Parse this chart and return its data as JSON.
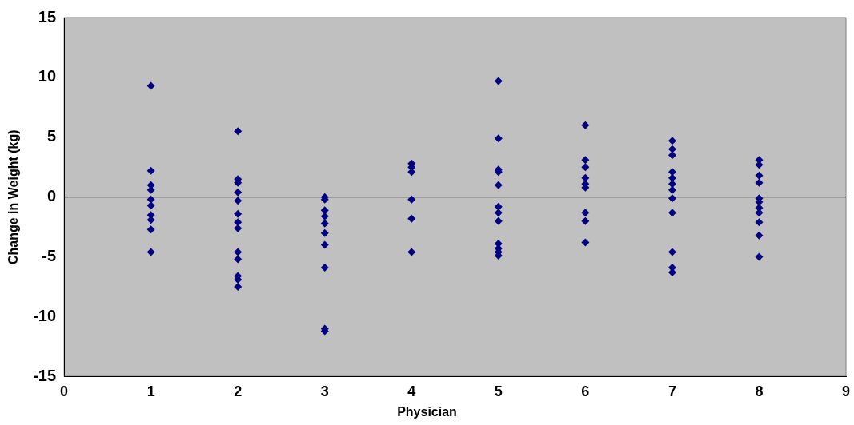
{
  "chart_data": {
    "type": "scatter",
    "xlabel": "Physician",
    "ylabel": "Change in Weight (kg)",
    "xlim": [
      0,
      9
    ],
    "xticks": [
      0,
      1,
      2,
      3,
      4,
      5,
      6,
      7,
      8,
      9
    ],
    "ylim": [
      -15,
      15
    ],
    "yticks": [
      -15,
      -10,
      -5,
      0,
      5,
      10,
      15
    ],
    "grid": false,
    "ref_lines": [
      {
        "axis": "y",
        "value": 0,
        "color": "#000000"
      }
    ],
    "legend": false,
    "marker": "diamond",
    "series": [
      {
        "color": "#000080",
        "x": [
          1,
          1,
          1,
          1,
          1,
          1,
          1,
          1,
          1,
          1
        ],
        "values": [
          9.3,
          2.2,
          1.0,
          0.6,
          -0.2,
          -0.7,
          -1.5,
          -1.9,
          -2.7,
          -4.6
        ]
      },
      {
        "color": "#000080",
        "x": [
          2,
          2,
          2,
          2,
          2,
          2,
          2,
          2,
          2,
          2,
          2,
          2,
          2
        ],
        "values": [
          5.5,
          1.5,
          1.2,
          0.4,
          -0.3,
          -1.4,
          -2.1,
          -2.6,
          -4.6,
          -5.2,
          -6.6,
          -6.9,
          -7.5
        ]
      },
      {
        "color": "#000080",
        "x": [
          3,
          3,
          3,
          3,
          3,
          3,
          3,
          3,
          3,
          3
        ],
        "values": [
          0,
          -0.2,
          -1.1,
          -1.6,
          -2.2,
          -3.0,
          -4.0,
          -5.9,
          -11.0,
          -11.2
        ]
      },
      {
        "color": "#000080",
        "x": [
          4,
          4,
          4,
          4,
          4,
          4
        ],
        "values": [
          2.8,
          2.5,
          2.1,
          -0.2,
          -1.8,
          -4.6
        ]
      },
      {
        "color": "#000080",
        "x": [
          5,
          5,
          5,
          5,
          5,
          5,
          5,
          5,
          5,
          5,
          5,
          5
        ],
        "values": [
          9.7,
          4.9,
          2.3,
          2.1,
          1.0,
          -0.8,
          -1.3,
          -2.0,
          -3.9,
          -4.3,
          -4.6,
          -4.9
        ]
      },
      {
        "color": "#000080",
        "x": [
          6,
          6,
          6,
          6,
          6,
          6,
          6,
          6,
          6
        ],
        "values": [
          6.0,
          3.1,
          2.5,
          1.6,
          1.1,
          0.8,
          -1.3,
          -2.0,
          -3.8
        ]
      },
      {
        "color": "#000080",
        "x": [
          7,
          7,
          7,
          7,
          7,
          7,
          7,
          7,
          7,
          7,
          7,
          7
        ],
        "values": [
          4.7,
          4.0,
          3.5,
          2.1,
          1.6,
          1.1,
          0.6,
          -0.1,
          -1.3,
          -4.6,
          -5.9,
          -6.3
        ]
      },
      {
        "color": "#000080",
        "x": [
          8,
          8,
          8,
          8,
          8,
          8,
          8,
          8,
          8,
          8,
          8
        ],
        "values": [
          3.1,
          2.7,
          1.8,
          1.2,
          -0.1,
          -0.4,
          -0.9,
          -1.3,
          -2.1,
          -3.2,
          -5.0
        ]
      }
    ]
  }
}
